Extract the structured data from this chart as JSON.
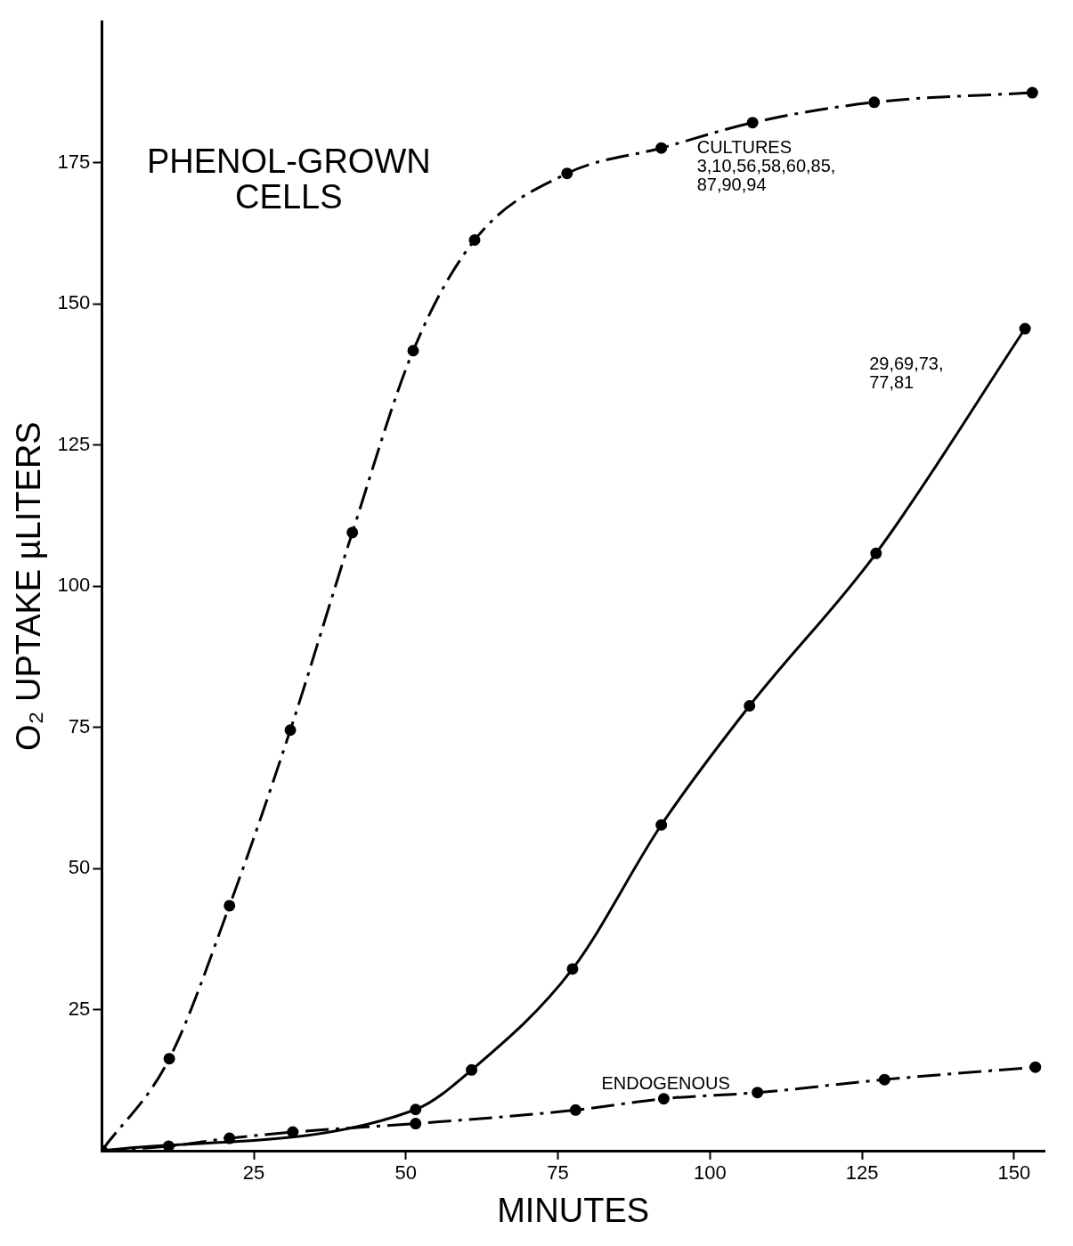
{
  "chart_data": {
    "type": "line",
    "xlabel": "MINUTES",
    "ylabel": "O₂ UPTAKE µLITERS",
    "annotations": [
      "PHENOL-GROWN CELLS"
    ],
    "xlim": [
      0,
      155
    ],
    "ylim": [
      0,
      200
    ],
    "xticks": [
      25,
      50,
      75,
      100,
      125,
      150
    ],
    "yticks": [
      25,
      50,
      75,
      100,
      125,
      150,
      175
    ],
    "grid": false,
    "legend": false,
    "marker": "circle",
    "series": [
      {
        "name": "CULTURES 3,10,56,58,60,85, 87,90,94",
        "color": "#000000",
        "line_style": "dashed",
        "x": [
          0,
          11.1,
          21,
          31,
          41.2,
          51.2,
          61.3,
          76.5,
          92,
          107,
          127,
          153
        ],
        "values": [
          0,
          16.3,
          43.4,
          74.5,
          109.5,
          141.7,
          161.3,
          173.1,
          177.6,
          182.1,
          185.7,
          187.4
        ]
      },
      {
        "name": "29,69,73, 77,81",
        "color": "#000000",
        "line_style": "solid",
        "x": [
          0,
          51.6,
          60.8,
          77.4,
          92,
          106.5,
          127.3,
          151.8
        ],
        "values": [
          0,
          7.3,
          14.3,
          32.2,
          57.7,
          78.8,
          105.8,
          145.6
        ]
      },
      {
        "name": "ENDOGENOUS",
        "color": "#000000",
        "line_style": "dashed",
        "x": [
          0,
          11,
          21,
          31.4,
          51.6,
          77.9,
          92.4,
          107.8,
          128.7,
          153.5
        ],
        "values": [
          0,
          0.8,
          2.2,
          3.3,
          4.8,
          7.2,
          9.2,
          10.3,
          12.6,
          14.8
        ]
      }
    ]
  }
}
